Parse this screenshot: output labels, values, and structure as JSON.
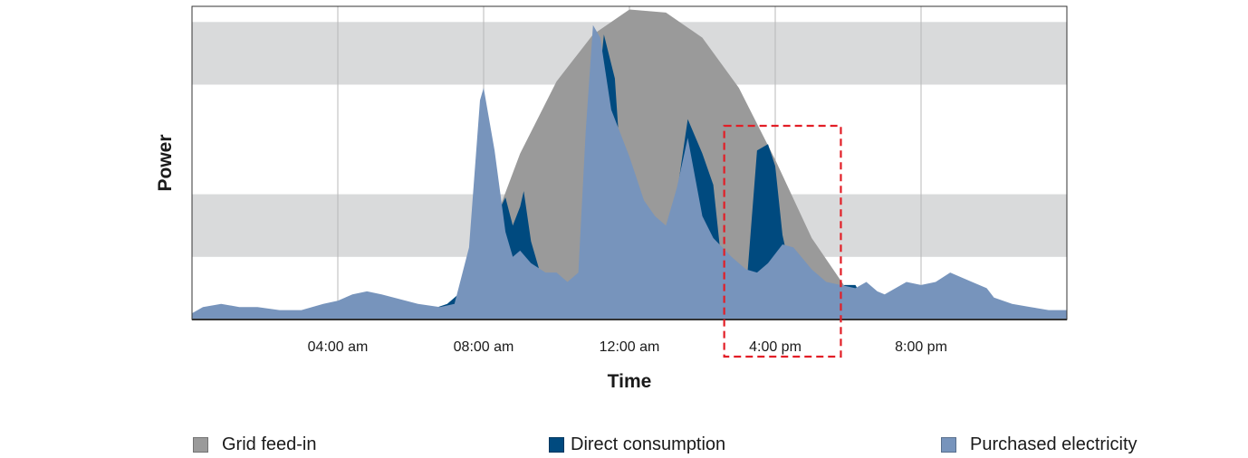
{
  "chart_data": {
    "type": "area",
    "xlabel": "Time",
    "ylabel": "Power",
    "x_unit": "hours",
    "x_range": [
      0,
      24
    ],
    "y_range": [
      0,
      100
    ],
    "x_ticks": [
      {
        "value": 4,
        "label": "04:00 am"
      },
      {
        "value": 8,
        "label": "08:00 am"
      },
      {
        "value": 12,
        "label": "12:00 am"
      },
      {
        "value": 16,
        "label": "4:00 pm"
      },
      {
        "value": 20,
        "label": "8:00 pm"
      }
    ],
    "grid": {
      "vertical": true,
      "horizontal_bands": true
    },
    "legend_position": "bottom",
    "highlight": {
      "x_range": [
        14.6,
        17.8
      ],
      "style": "dashed",
      "color": "#e21e26"
    },
    "series": [
      {
        "name": "Grid feed-in",
        "color": "#9a9a9a",
        "x": [
          0,
          6.9,
          7.3,
          8,
          9,
          10,
          11,
          12,
          13,
          14,
          15,
          16,
          17,
          18,
          18.5,
          19,
          24
        ],
        "y": [
          0,
          0,
          5,
          22,
          53,
          76,
          91,
          99,
          98,
          90,
          74,
          51,
          26,
          9,
          2,
          0,
          0
        ]
      },
      {
        "name": "Direct consumption",
        "color": "#004a7f",
        "x": [
          0,
          4.5,
          5.5,
          6.5,
          7.0,
          7.5,
          8.0,
          8.3,
          8.6,
          8.8,
          9.0,
          9.1,
          9.3,
          9.7,
          10.0,
          10.3,
          10.5,
          10.7,
          11.0,
          11.3,
          11.6,
          11.8,
          12.0,
          12.2,
          12.4,
          12.7,
          13.0,
          13.3,
          13.6,
          14.0,
          14.3,
          14.5,
          14.8,
          15.2,
          15.5,
          15.8,
          16.0,
          16.2,
          16.5,
          16.8,
          17.2,
          17.6,
          17.9,
          18.2,
          18.5,
          19.0,
          19.5,
          20.0,
          24
        ],
        "y": [
          0,
          0,
          2,
          3,
          5,
          10,
          25,
          32,
          39,
          30,
          36,
          41,
          25,
          9,
          9,
          6,
          4,
          3,
          56,
          91,
          77,
          42,
          24,
          18,
          9,
          7,
          7,
          40,
          64,
          53,
          43,
          21,
          10,
          9,
          54,
          56,
          49,
          27,
          11,
          9,
          10,
          8,
          11,
          11,
          5,
          3,
          2,
          0,
          0
        ]
      },
      {
        "name": "Purchased electricity",
        "color": "#7794bc",
        "x": [
          0,
          0.3,
          0.8,
          1.3,
          1.8,
          2.4,
          3.0,
          3.6,
          4.0,
          4.4,
          4.8,
          5.2,
          6.2,
          6.8,
          7.2,
          7.6,
          7.9,
          8.0,
          8.3,
          8.6,
          8.8,
          9.0,
          9.3,
          9.7,
          10.0,
          10.3,
          10.6,
          10.8,
          11.0,
          11.2,
          11.5,
          12.0,
          12.4,
          12.7,
          13.0,
          13.3,
          13.6,
          14.0,
          14.3,
          14.8,
          15.2,
          15.5,
          15.8,
          16.2,
          16.5,
          17.0,
          17.4,
          17.8,
          18.2,
          18.5,
          18.8,
          19.0,
          19.3,
          19.6,
          20.0,
          20.4,
          20.8,
          21.0,
          21.4,
          21.8,
          22.0,
          22.5,
          23.0,
          23.5,
          24.0
        ],
        "y": [
          2,
          4,
          5,
          4,
          4,
          3,
          3,
          5,
          6,
          8,
          9,
          8,
          5,
          4,
          5,
          23,
          70,
          74,
          54,
          28,
          20,
          22,
          18,
          15,
          15,
          12,
          15,
          60,
          94,
          90,
          67,
          52,
          38,
          33,
          30,
          42,
          58,
          33,
          26,
          20,
          16,
          15,
          18,
          24,
          23,
          16,
          12,
          11,
          10,
          12,
          9,
          8,
          10,
          12,
          11,
          12,
          15,
          14,
          12,
          10,
          7,
          5,
          4,
          3,
          3
        ]
      }
    ]
  },
  "legend": [
    {
      "label": "Grid feed-in",
      "color": "#9a9a9a"
    },
    {
      "label": "Direct consumption",
      "color": "#004a7f"
    },
    {
      "label": "Purchased electricity",
      "color": "#7794bc"
    }
  ]
}
